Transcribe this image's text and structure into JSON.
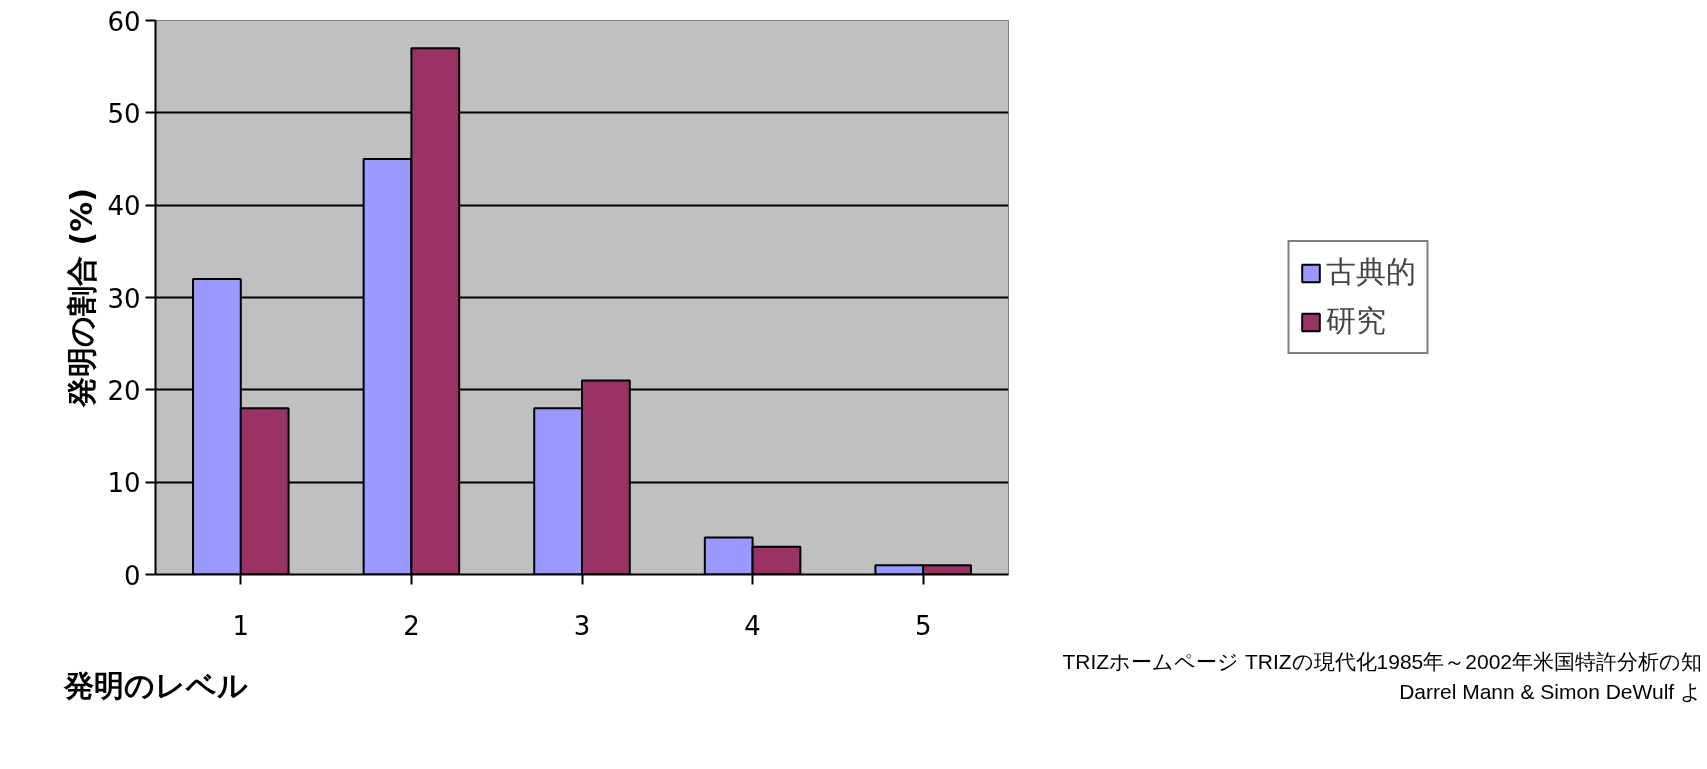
{
  "chart_data": {
    "type": "bar",
    "xlabel": "発明のレベル",
    "ylabel": "発明の割合 (%)",
    "categories": [
      "1",
      "2",
      "3",
      "4",
      "5"
    ],
    "series": [
      {
        "name": "古典的",
        "color": "#9999ff",
        "values": [
          32,
          45,
          18,
          4,
          1
        ]
      },
      {
        "name": "研究",
        "color": "#993366",
        "values": [
          18,
          57,
          21,
          3,
          1
        ]
      }
    ],
    "ylim": [
      0,
      60
    ],
    "yticks": [
      0,
      10,
      20,
      30,
      40,
      50,
      60
    ],
    "grid": "y",
    "legend": "right",
    "annotations": [
      "TRIZホームページ  TRIZの現代化1985年～2002年米国特許分析の知",
      "Darrel  Mann &  Simon  DeWulf  よ"
    ]
  }
}
